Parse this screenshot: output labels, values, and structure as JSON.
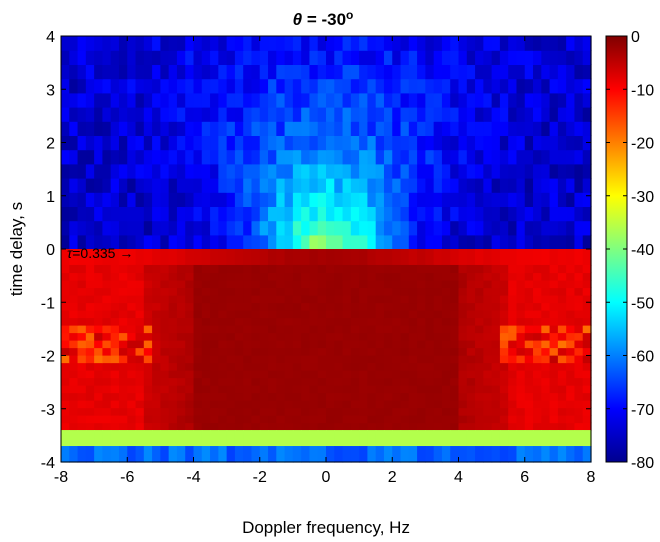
{
  "chart_data": {
    "type": "heatmap",
    "title": {
      "symbol": "θ",
      "equals": " = -30",
      "superscript": "o"
    },
    "xlabel": "Doppler frequency, Hz",
    "ylabel": "time delay, s",
    "xlim": [
      -8,
      8
    ],
    "ylim": [
      -4,
      4
    ],
    "xticks": [
      -8,
      -6,
      -4,
      -2,
      0,
      2,
      4,
      6,
      8
    ],
    "yticks": [
      -4,
      -3,
      -2,
      -1,
      0,
      1,
      2,
      3,
      4
    ],
    "colorbar": {
      "min": -80,
      "max": 0,
      "ticks": [
        0,
        -10,
        -20,
        -30,
        -40,
        -50,
        -60,
        -70,
        -80
      ],
      "colormap": "jet"
    },
    "annotation": {
      "symbol": "τ",
      "text": "=0.335 →",
      "x": -8,
      "y": 0
    },
    "grid": false,
    "value_units": "dB"
  }
}
